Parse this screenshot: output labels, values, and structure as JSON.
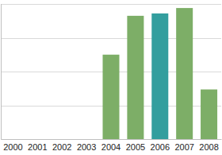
{
  "chart_data": {
    "type": "bar",
    "categories": [
      "2000",
      "2001",
      "2002",
      "2003",
      "2004",
      "2005",
      "2006",
      "2007",
      "2008"
    ],
    "values": [
      0,
      0,
      0,
      0,
      2.5,
      3.65,
      3.72,
      3.88,
      1.47
    ],
    "colors": [
      "#7dae67",
      "#7dae67",
      "#7dae67",
      "#7dae67",
      "#7dae67",
      "#7dae67",
      "#339e9e",
      "#7dae67",
      "#7dae67"
    ],
    "ylim": [
      0,
      4
    ],
    "yticks": [
      0,
      1,
      2,
      3,
      4
    ],
    "grid": true,
    "tick_labels": "x"
  }
}
